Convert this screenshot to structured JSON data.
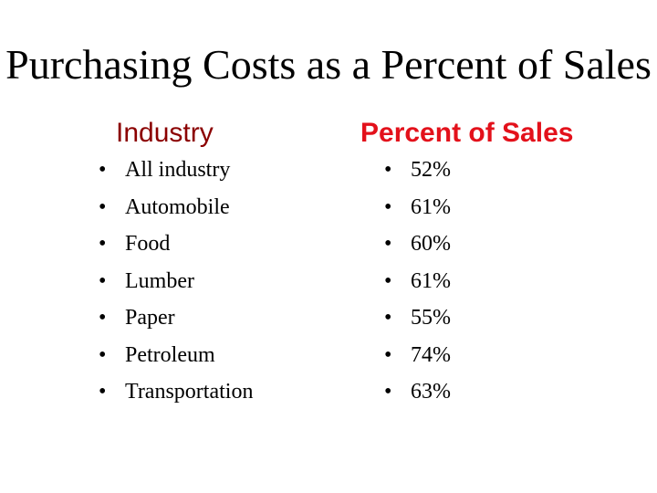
{
  "title": "Purchasing Costs as a Percent of Sales",
  "headers": {
    "industry": "Industry",
    "percent": "Percent of Sales"
  },
  "colors": {
    "industry_header": "#8b0000",
    "percent_header": "#e3111b",
    "body_text": "#000000"
  },
  "bullet_glyph": "•",
  "industries": [
    "All industry",
    "Automobile",
    "Food",
    "Lumber",
    "Paper",
    "Petroleum",
    "Transportation"
  ],
  "percents": [
    "52%",
    "61%",
    "60%",
    "61%",
    "55%",
    "74%",
    "63%"
  ]
}
